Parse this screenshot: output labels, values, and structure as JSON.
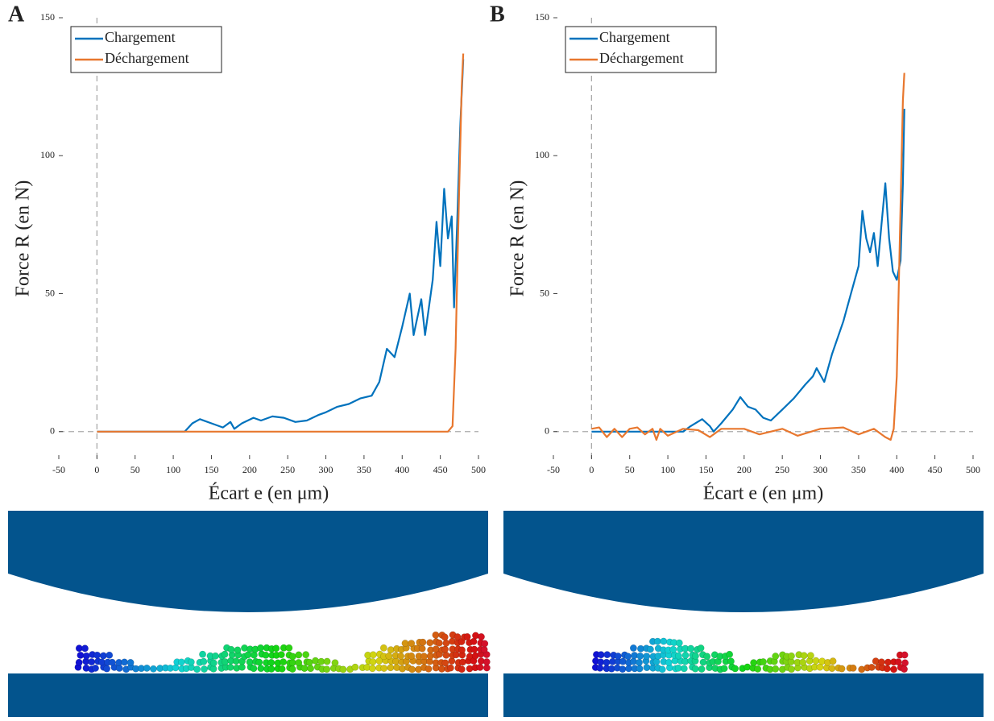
{
  "panels": [
    "A",
    "B"
  ],
  "chart_data": [
    {
      "type": "line",
      "xlabel": "Écart e (en μm)",
      "ylabel": "Force R (en N)",
      "xlim": [
        -50,
        500
      ],
      "xticks": [
        -50,
        0,
        50,
        100,
        150,
        200,
        250,
        300,
        350,
        400,
        450,
        500
      ],
      "ylim": [
        -10,
        150
      ],
      "yticks": [
        0,
        50,
        100,
        150
      ],
      "legend": "upper left",
      "series": [
        {
          "name": "Chargement",
          "color": "#0072bd",
          "x": [
            0,
            115,
            125,
            135,
            150,
            165,
            175,
            180,
            190,
            205,
            215,
            230,
            245,
            260,
            275,
            290,
            300,
            315,
            330,
            345,
            360,
            370,
            380,
            390,
            400,
            410,
            415,
            425,
            430,
            440,
            445,
            450,
            455,
            460,
            465,
            468,
            472,
            476,
            480
          ],
          "values": [
            0,
            0,
            3,
            4.5,
            3,
            1.5,
            3.5,
            1,
            3,
            5,
            4,
            5.5,
            5,
            3.5,
            4,
            6,
            7,
            9,
            10,
            12,
            13,
            18,
            30,
            27,
            38,
            50,
            35,
            48,
            35,
            55,
            76,
            60,
            88,
            70,
            78,
            45,
            75,
            110,
            135
          ]
        },
        {
          "name": "Déchargement",
          "color": "#e8772e",
          "x": [
            0,
            460,
            466,
            470,
            474,
            478,
            480
          ],
          "values": [
            0,
            0,
            2,
            30,
            80,
            125,
            137
          ]
        }
      ]
    },
    {
      "type": "line",
      "xlabel": "Écart e (en μm)",
      "ylabel": "Force R (en N)",
      "xlim": [
        -50,
        500
      ],
      "xticks": [
        -50,
        0,
        50,
        100,
        150,
        200,
        250,
        300,
        350,
        400,
        450,
        500
      ],
      "ylim": [
        -10,
        150
      ],
      "yticks": [
        0,
        50,
        100,
        150
      ],
      "legend": "upper left",
      "series": [
        {
          "name": "Chargement",
          "color": "#0072bd",
          "x": [
            0,
            120,
            130,
            145,
            155,
            160,
            170,
            185,
            195,
            205,
            215,
            225,
            235,
            250,
            265,
            280,
            290,
            295,
            305,
            315,
            330,
            340,
            350,
            355,
            360,
            365,
            370,
            375,
            380,
            385,
            390,
            395,
            400,
            405,
            408,
            410
          ],
          "values": [
            0,
            0,
            2,
            4.5,
            2,
            0,
            3,
            8,
            12.5,
            9,
            8,
            5,
            4,
            8,
            12,
            17,
            20,
            23,
            18,
            28,
            40,
            50,
            60,
            80,
            70,
            65,
            72,
            60,
            75,
            90,
            70,
            58,
            55,
            62,
            90,
            117
          ]
        },
        {
          "name": "Déchargement",
          "color": "#e8772e",
          "x": [
            0,
            10,
            20,
            30,
            40,
            50,
            60,
            70,
            80,
            85,
            90,
            100,
            120,
            140,
            155,
            170,
            200,
            220,
            250,
            270,
            300,
            330,
            350,
            370,
            385,
            392,
            396,
            400,
            404,
            408,
            410
          ],
          "values": [
            1,
            1.5,
            -2,
            1,
            -2,
            1,
            1.5,
            -1,
            1,
            -3,
            1,
            -1.5,
            1,
            0.5,
            -2,
            1,
            1,
            -1,
            1,
            -1.5,
            1,
            1.5,
            -1,
            1,
            -2,
            -3,
            1,
            20,
            70,
            120,
            130
          ]
        }
      ]
    }
  ]
}
